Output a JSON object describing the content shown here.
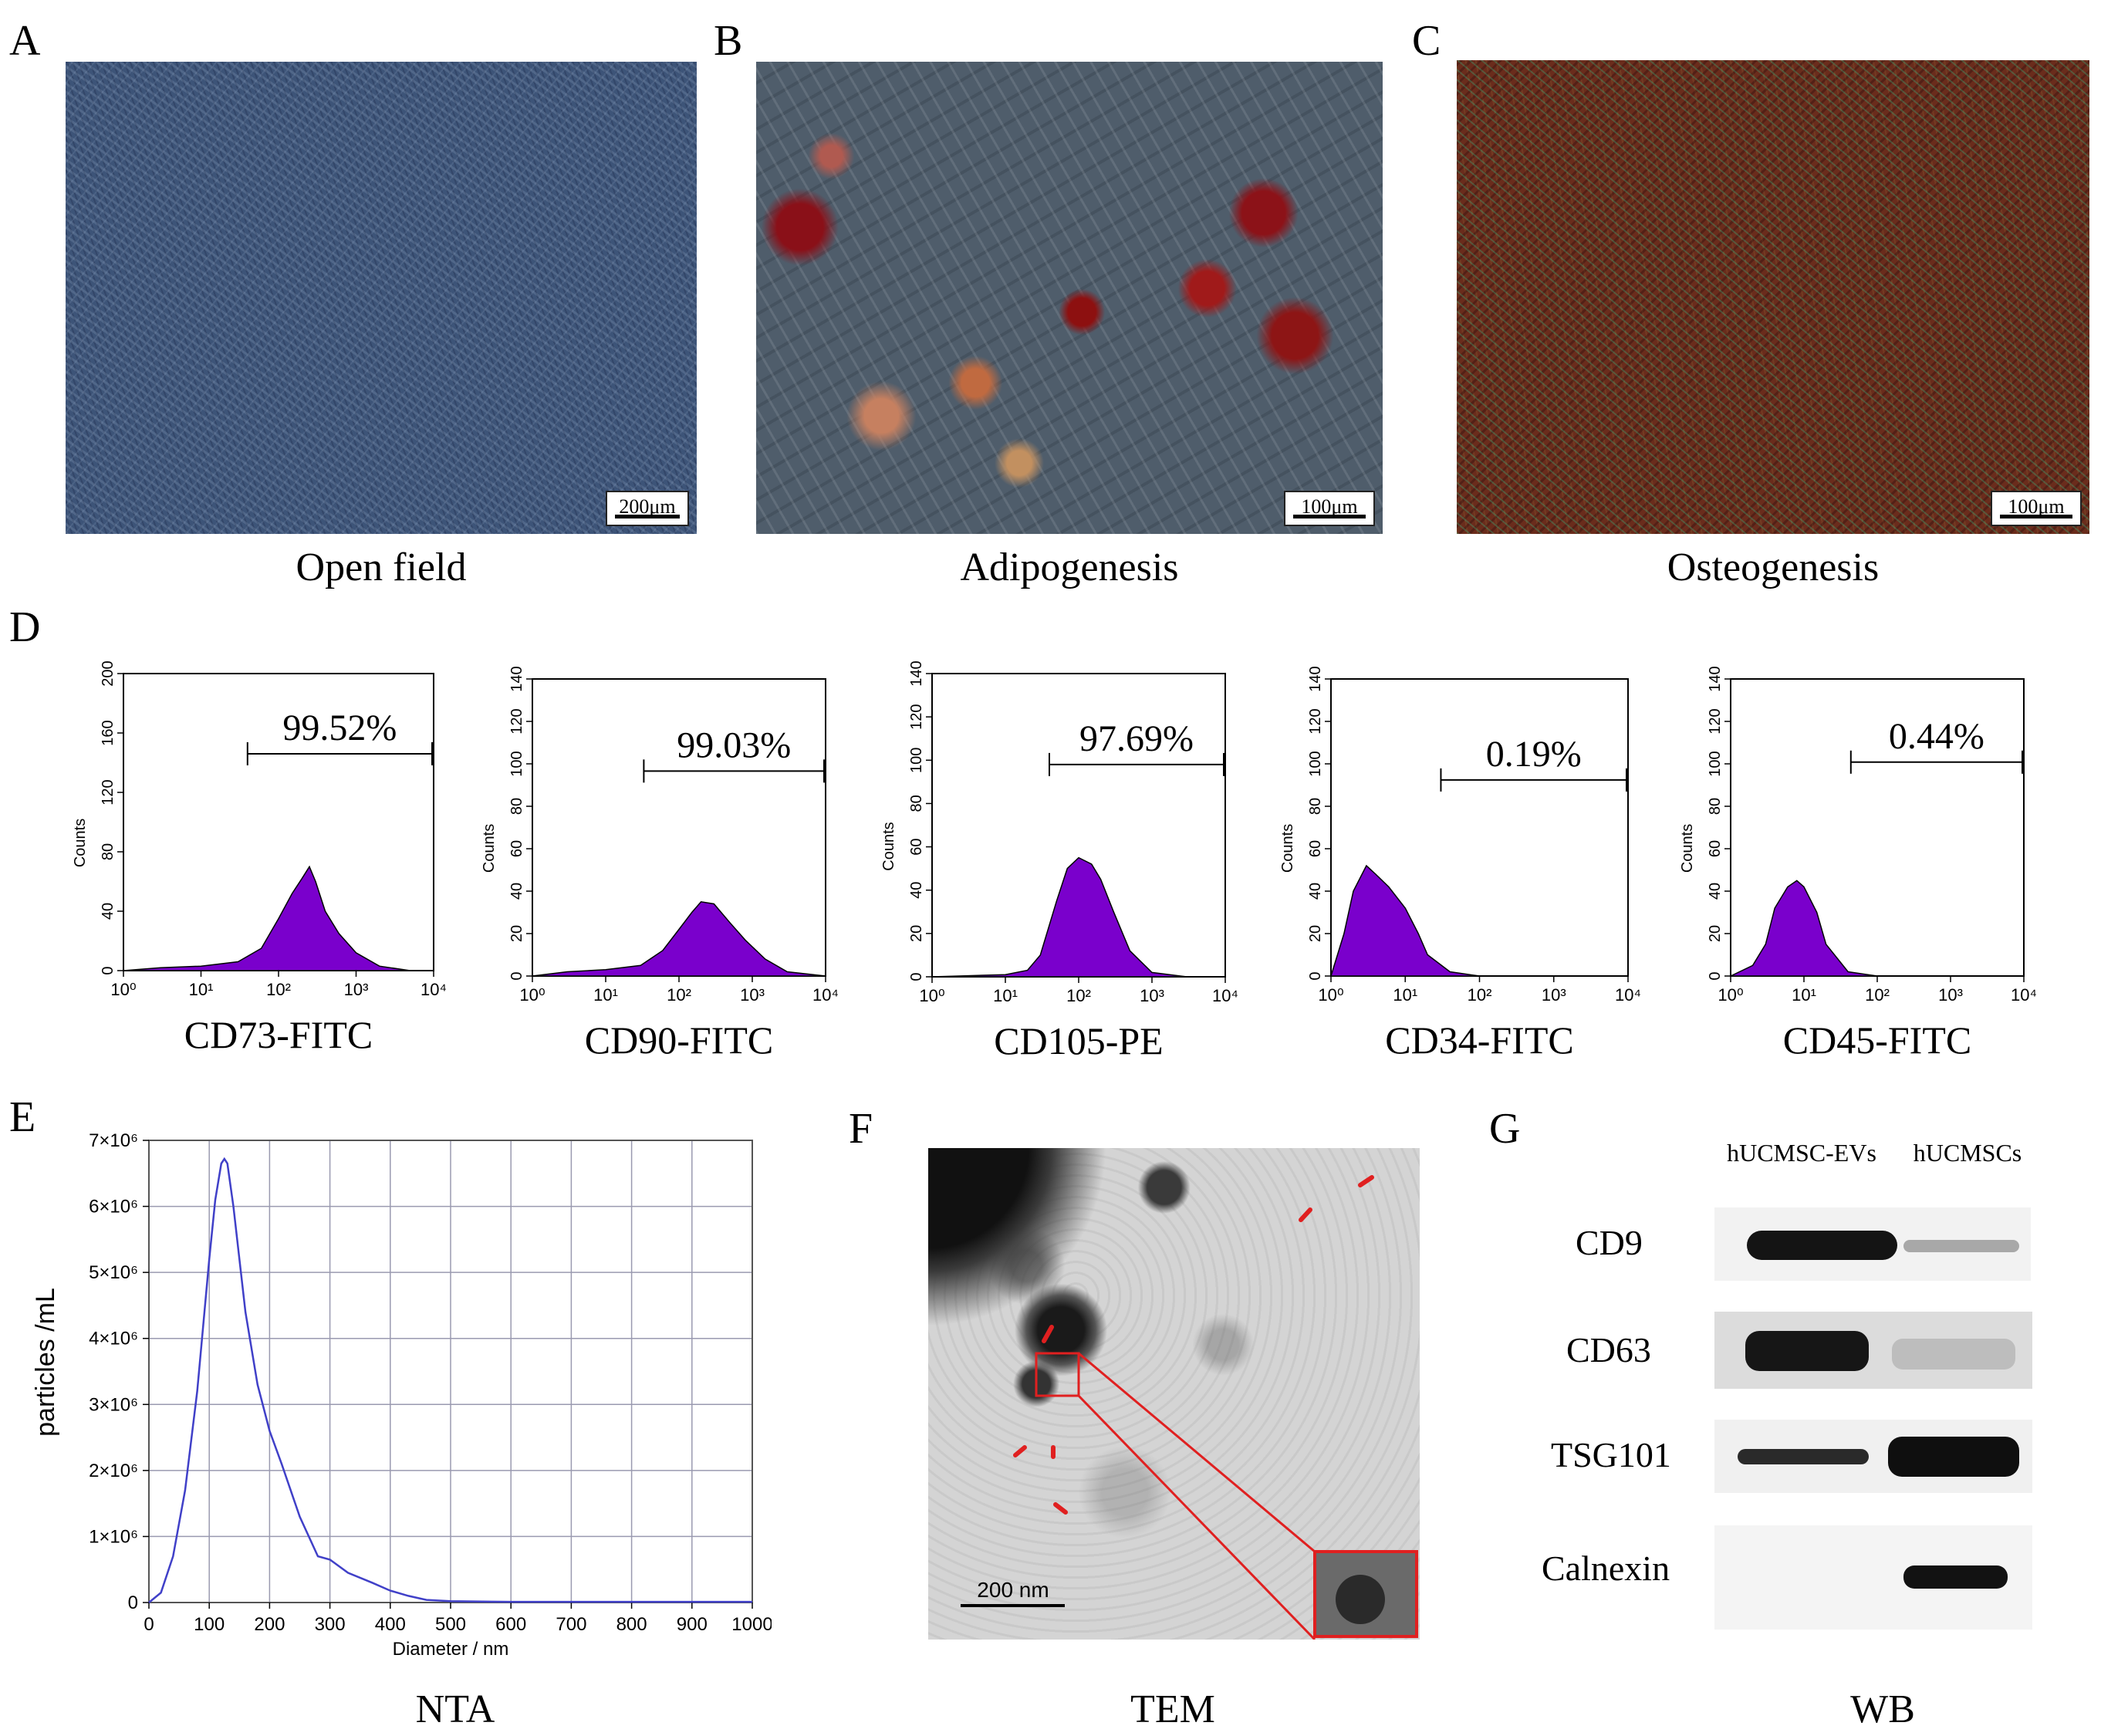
{
  "panel_letters": {
    "a": "A",
    "b": "B",
    "c": "C",
    "d": "D",
    "e": "E",
    "f": "F",
    "g": "G"
  },
  "micrographs": [
    {
      "caption": "Open field",
      "scale": "200μm"
    },
    {
      "caption": "Adipogenesis",
      "scale": "100μm"
    },
    {
      "caption": "Osteogenesis",
      "scale": "100μm"
    }
  ],
  "flow": {
    "ylabel": "Counts",
    "panels": [
      {
        "marker": "CD73-FITC",
        "percent": "99.52%",
        "yticks": [
          "0",
          "40",
          "80",
          "120",
          "160",
          "200"
        ]
      },
      {
        "marker": "CD90-FITC",
        "percent": "99.03%",
        "yticks": [
          "0",
          "20",
          "40",
          "60",
          "80",
          "100",
          "120",
          "140"
        ]
      },
      {
        "marker": "CD105-PE",
        "percent": "97.69%",
        "yticks": [
          "0",
          "20",
          "40",
          "60",
          "80",
          "100",
          "120",
          "140"
        ]
      },
      {
        "marker": "CD34-FITC",
        "percent": "0.19%",
        "yticks": [
          "0",
          "20",
          "40",
          "60",
          "80",
          "100",
          "120",
          "140"
        ]
      },
      {
        "marker": "CD45-FITC",
        "percent": "0.44%",
        "yticks": [
          "0",
          "20",
          "40",
          "60",
          "80",
          "100",
          "120",
          "140"
        ]
      }
    ],
    "xticks": [
      "10⁰",
      "10¹",
      "10²",
      "10³",
      "10⁴"
    ]
  },
  "chart_data": [
    {
      "type": "area",
      "title": "CD73-FITC",
      "xlabel": "CD73-FITC",
      "ylabel": "Counts",
      "xscale": "log",
      "xlim": [
        1,
        10000
      ],
      "ylim": [
        0,
        200
      ],
      "x": [
        1,
        3,
        10,
        30,
        60,
        100,
        150,
        200,
        250,
        300,
        400,
        600,
        1000,
        2000,
        5000,
        10000
      ],
      "y": [
        0,
        2,
        3,
        6,
        15,
        35,
        52,
        62,
        70,
        60,
        40,
        25,
        12,
        3,
        0,
        0
      ],
      "annotation": "99.52%"
    },
    {
      "type": "area",
      "title": "CD90-FITC",
      "xlabel": "CD90-FITC",
      "ylabel": "Counts",
      "xscale": "log",
      "xlim": [
        1,
        10000
      ],
      "ylim": [
        0,
        140
      ],
      "x": [
        1,
        3,
        10,
        30,
        60,
        100,
        150,
        200,
        300,
        500,
        800,
        1500,
        3000,
        10000
      ],
      "y": [
        0,
        2,
        3,
        5,
        12,
        22,
        30,
        35,
        34,
        25,
        17,
        8,
        2,
        0
      ],
      "annotation": "99.03%"
    },
    {
      "type": "area",
      "title": "CD105-PE",
      "xlabel": "CD105-PE",
      "ylabel": "Counts",
      "xscale": "log",
      "xlim": [
        1,
        10000
      ],
      "ylim": [
        0,
        140
      ],
      "x": [
        1,
        10,
        20,
        30,
        50,
        70,
        100,
        150,
        200,
        300,
        500,
        1000,
        3000,
        10000
      ],
      "y": [
        0,
        1,
        3,
        10,
        35,
        50,
        55,
        52,
        45,
        30,
        12,
        2,
        0,
        0
      ],
      "annotation": "97.69%"
    },
    {
      "type": "area",
      "title": "CD34-FITC",
      "xlabel": "CD34-FITC",
      "ylabel": "Counts",
      "xscale": "log",
      "xlim": [
        1,
        10000
      ],
      "ylim": [
        0,
        140
      ],
      "x": [
        1,
        1.5,
        2,
        3,
        4,
        6,
        10,
        15,
        20,
        40,
        100,
        1000,
        10000
      ],
      "y": [
        0,
        20,
        40,
        52,
        48,
        42,
        32,
        20,
        10,
        2,
        0,
        0,
        0
      ],
      "annotation": "0.19%"
    },
    {
      "type": "area",
      "title": "CD45-FITC",
      "xlabel": "CD45-FITC",
      "ylabel": "Counts",
      "xscale": "log",
      "xlim": [
        1,
        10000
      ],
      "ylim": [
        0,
        140
      ],
      "x": [
        1,
        2,
        3,
        4,
        6,
        8,
        10,
        15,
        20,
        40,
        100,
        1000,
        10000
      ],
      "y": [
        0,
        5,
        15,
        32,
        42,
        45,
        42,
        30,
        15,
        2,
        0,
        0,
        0
      ],
      "annotation": "0.44%"
    },
    {
      "type": "line",
      "title": "NTA",
      "xlabel": "Diameter / nm",
      "ylabel": "particles /mL",
      "xlim": [
        0,
        1000
      ],
      "ylim": [
        0,
        7000000
      ],
      "xticks": [
        "0",
        "100",
        "200",
        "300",
        "400",
        "500",
        "600",
        "700",
        "800",
        "900",
        "1000"
      ],
      "yticks": [
        "0",
        "1×10⁶",
        "2×10⁶",
        "3×10⁶",
        "4×10⁶",
        "5×10⁶",
        "6×10⁶",
        "7×10⁶"
      ],
      "x": [
        0,
        20,
        40,
        60,
        80,
        100,
        110,
        120,
        125,
        130,
        140,
        160,
        180,
        200,
        220,
        250,
        280,
        300,
        330,
        370,
        400,
        430,
        460,
        500,
        600,
        700,
        800,
        900,
        1000
      ],
      "y": [
        0,
        150000,
        700000,
        1700000,
        3200000,
        5200000,
        6100000,
        6650000,
        6720000,
        6650000,
        6000000,
        4400000,
        3300000,
        2600000,
        2100000,
        1300000,
        700000,
        650000,
        450000,
        300000,
        180000,
        100000,
        40000,
        20000,
        10000,
        10000,
        10000,
        10000,
        10000
      ]
    }
  ],
  "nta": {
    "caption": "NTA",
    "xlabel": "Diameter / nm",
    "ylabel": "particles /mL"
  },
  "tem": {
    "caption": "TEM",
    "scale": "200 nm"
  },
  "wb": {
    "caption": "WB",
    "columns": [
      "hUCMSC-EVs",
      "hUCMSCs"
    ],
    "rows": [
      "CD9",
      "CD63",
      "TSG101",
      "Calnexin"
    ]
  },
  "colors": {
    "histogram": "#7a00cc",
    "nta_line": "#4040c8",
    "arrow": "#e02020"
  }
}
